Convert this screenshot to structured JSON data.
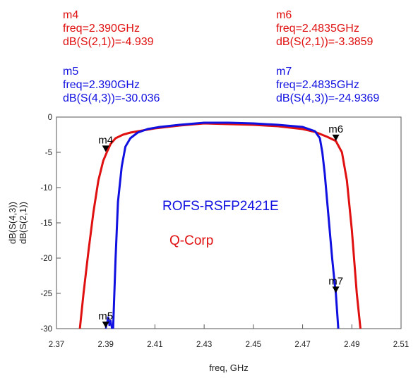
{
  "markers": [
    {
      "id": "m4",
      "lines": [
        "m4",
        "freq=2.390GHz",
        "dB(S(2,1))=-4.939"
      ],
      "color": "#e01010"
    },
    {
      "id": "m6",
      "lines": [
        "m6",
        "freq=2.4835GHz",
        "dB(S(2,1))=-3.3859"
      ],
      "color": "#e01010"
    },
    {
      "id": "m5",
      "lines": [
        "m5",
        "freq=2.390GHz",
        "dB(S(4,3))=-30.036"
      ],
      "color": "#1010e0"
    },
    {
      "id": "m7",
      "lines": [
        "m7",
        "freq=2.4835GHz",
        "dB(S(4,3))=-24.9369"
      ],
      "color": "#1010e0"
    }
  ],
  "chart_data": {
    "type": "line",
    "xlabel": "freq, GHz",
    "ylabel_series": [
      {
        "text": "dB(S(4,3))",
        "color": "#1010e0"
      },
      {
        "text": "dB(S(2,1))",
        "color": "#e01010"
      }
    ],
    "xlim": [
      2.37,
      2.51
    ],
    "ylim": [
      -30,
      0
    ],
    "xticks": [
      "2.37",
      "2.39",
      "2.41",
      "2.43",
      "2.45",
      "2.47",
      "2.49",
      "2.51"
    ],
    "yticks": [
      "0",
      "-5",
      "-10",
      "-15",
      "-20",
      "-25",
      "-30"
    ],
    "grid": false,
    "annotations": [
      {
        "text": "ROFS-RSFP2421E",
        "color": "#1010e0"
      },
      {
        "text": "Q-Corp",
        "color": "#e01010"
      }
    ],
    "series": [
      {
        "color": "#e01010",
        "x": [
          2.3795,
          2.381,
          2.383,
          2.385,
          2.387,
          2.389,
          2.3905,
          2.392,
          2.394,
          2.397,
          2.4,
          2.405,
          2.41,
          2.42,
          2.43,
          2.44,
          2.45,
          2.46,
          2.47,
          2.475,
          2.48,
          2.4835,
          2.486,
          2.488,
          2.49,
          2.492,
          2.4935
        ],
        "y": [
          -30,
          -25,
          -19,
          -13.5,
          -9,
          -6.2,
          -4.939,
          -3.8,
          -3.0,
          -2.5,
          -2.2,
          -1.9,
          -1.6,
          -1.2,
          -0.9,
          -1.0,
          -1.1,
          -1.3,
          -1.7,
          -2.1,
          -2.8,
          -3.3859,
          -5.0,
          -9.0,
          -16,
          -25,
          -30
        ]
      },
      {
        "color": "#1010e0",
        "x": [
          2.393,
          2.394,
          2.395,
          2.3965,
          2.398,
          2.4,
          2.403,
          2.407,
          2.412,
          2.42,
          2.43,
          2.44,
          2.45,
          2.46,
          2.47,
          2.475,
          2.477,
          2.478,
          2.479,
          2.48,
          2.481,
          2.482,
          2.483,
          2.4835,
          2.4845
        ],
        "y": [
          -30,
          -20,
          -12,
          -7.0,
          -4.2,
          -3.0,
          -2.2,
          -1.7,
          -1.4,
          -1.1,
          -0.8,
          -0.8,
          -0.9,
          -1.1,
          -1.4,
          -2.0,
          -3.0,
          -5.0,
          -8.0,
          -12,
          -16,
          -20,
          -23.5,
          -24.9369,
          -30
        ],
        "noise": {
          "x": [
            2.39,
            2.3905,
            2.391,
            2.3915,
            2.392,
            2.3925
          ],
          "y": [
            -30,
            -29.2,
            -28.3,
            -29.6,
            -28.8,
            -30
          ]
        }
      }
    ],
    "chart_markers": [
      {
        "label": "m4",
        "x": 2.39,
        "y": -4.939
      },
      {
        "label": "m6",
        "x": 2.4835,
        "y": -3.3859
      },
      {
        "label": "m5",
        "x": 2.39,
        "y": -30.036
      },
      {
        "label": "m7",
        "x": 2.4835,
        "y": -24.9369
      }
    ]
  }
}
